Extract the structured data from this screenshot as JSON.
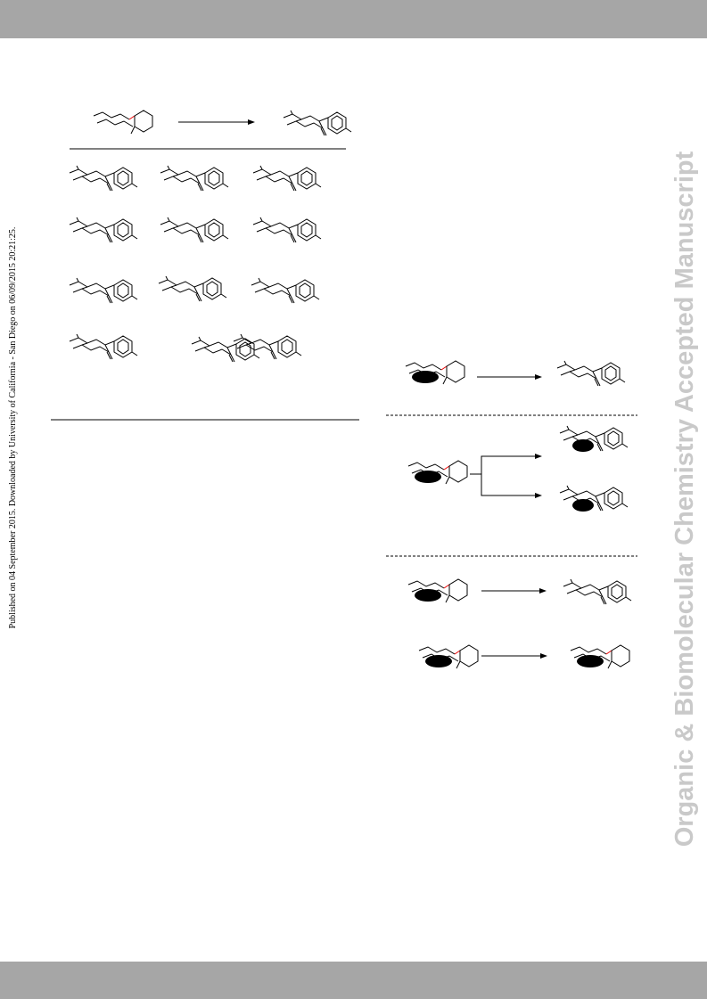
{
  "watermark": {
    "published": "Published on 04 September 2015. Downloaded by University of California - San Diego on 06/09/2015 20:21:25.",
    "journal": "Organic & Biomolecular Chemistry Accepted Manuscript"
  }
}
